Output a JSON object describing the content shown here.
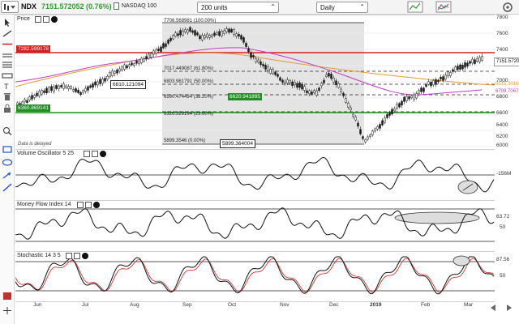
{
  "toolbar": {
    "ticker": "NDX",
    "last_value": "7151.572052 (0.76%)",
    "exchange": "NASDAQ 100",
    "units": "200 units",
    "interval": "Daily",
    "colors": {
      "up": "#2e9e2e"
    }
  },
  "sidebar": {
    "tools": [
      "cursor-icon",
      "trend-line-icon",
      "horizontal-line-icon",
      "vertical-line-icon",
      "fibonacci-icon",
      "ruler-icon",
      "text-icon",
      "trash-icon",
      "lock-icon",
      "zoom-icon",
      "rectangle-icon",
      "ellipse-icon",
      "arrow-icon"
    ]
  },
  "price_panel": {
    "title": "Price",
    "note": "Data is delayed",
    "y_ticks": [
      "7800",
      "7600",
      "7400",
      "7200",
      "7000",
      "6800",
      "6600",
      "6400",
      "6200",
      "6000"
    ],
    "flags": {
      "upper_hline": "7282.599178",
      "lower_hline": "6360.869141",
      "last": "7151.57205",
      "ma1": "6815.30166",
      "ma2": "6709.70672"
    },
    "fib_labels": [
      "7708.568981 (100.00%)",
      "7017.449087 (61.80%)",
      "6803.961791 (50.00%)",
      "6590.474494 (38.20%)",
      "6326.329194 (23.60%)",
      "5899.3546 (0.00%)"
    ],
    "callouts": {
      "left_box": "6810.121094",
      "green_box": "6620.941895",
      "bottom_box": "5899.364004"
    },
    "colors": {
      "candle_up": "#1a1a1a",
      "hline": "#d62020",
      "support": "#1f8f1f",
      "ma_orange": "#e79a2e",
      "ma_magenta": "#c23bc2",
      "fib_bg": "#e4e4e4"
    }
  },
  "vo_panel": {
    "title": "Volume Oscillator 5 25",
    "value": "-156M"
  },
  "mfi_panel": {
    "title": "Money Flow Index 14",
    "value": "63.72",
    "tick": "50"
  },
  "stoch_panel": {
    "title": "Stochastic 14 3 5",
    "value": "87.56",
    "tick": "50"
  },
  "x_axis": {
    "labels": [
      "Jun",
      "Jul",
      "Aug",
      "Sep",
      "Oct",
      "Nov",
      "Dec",
      "2019",
      "Feb",
      "Mar"
    ]
  }
}
